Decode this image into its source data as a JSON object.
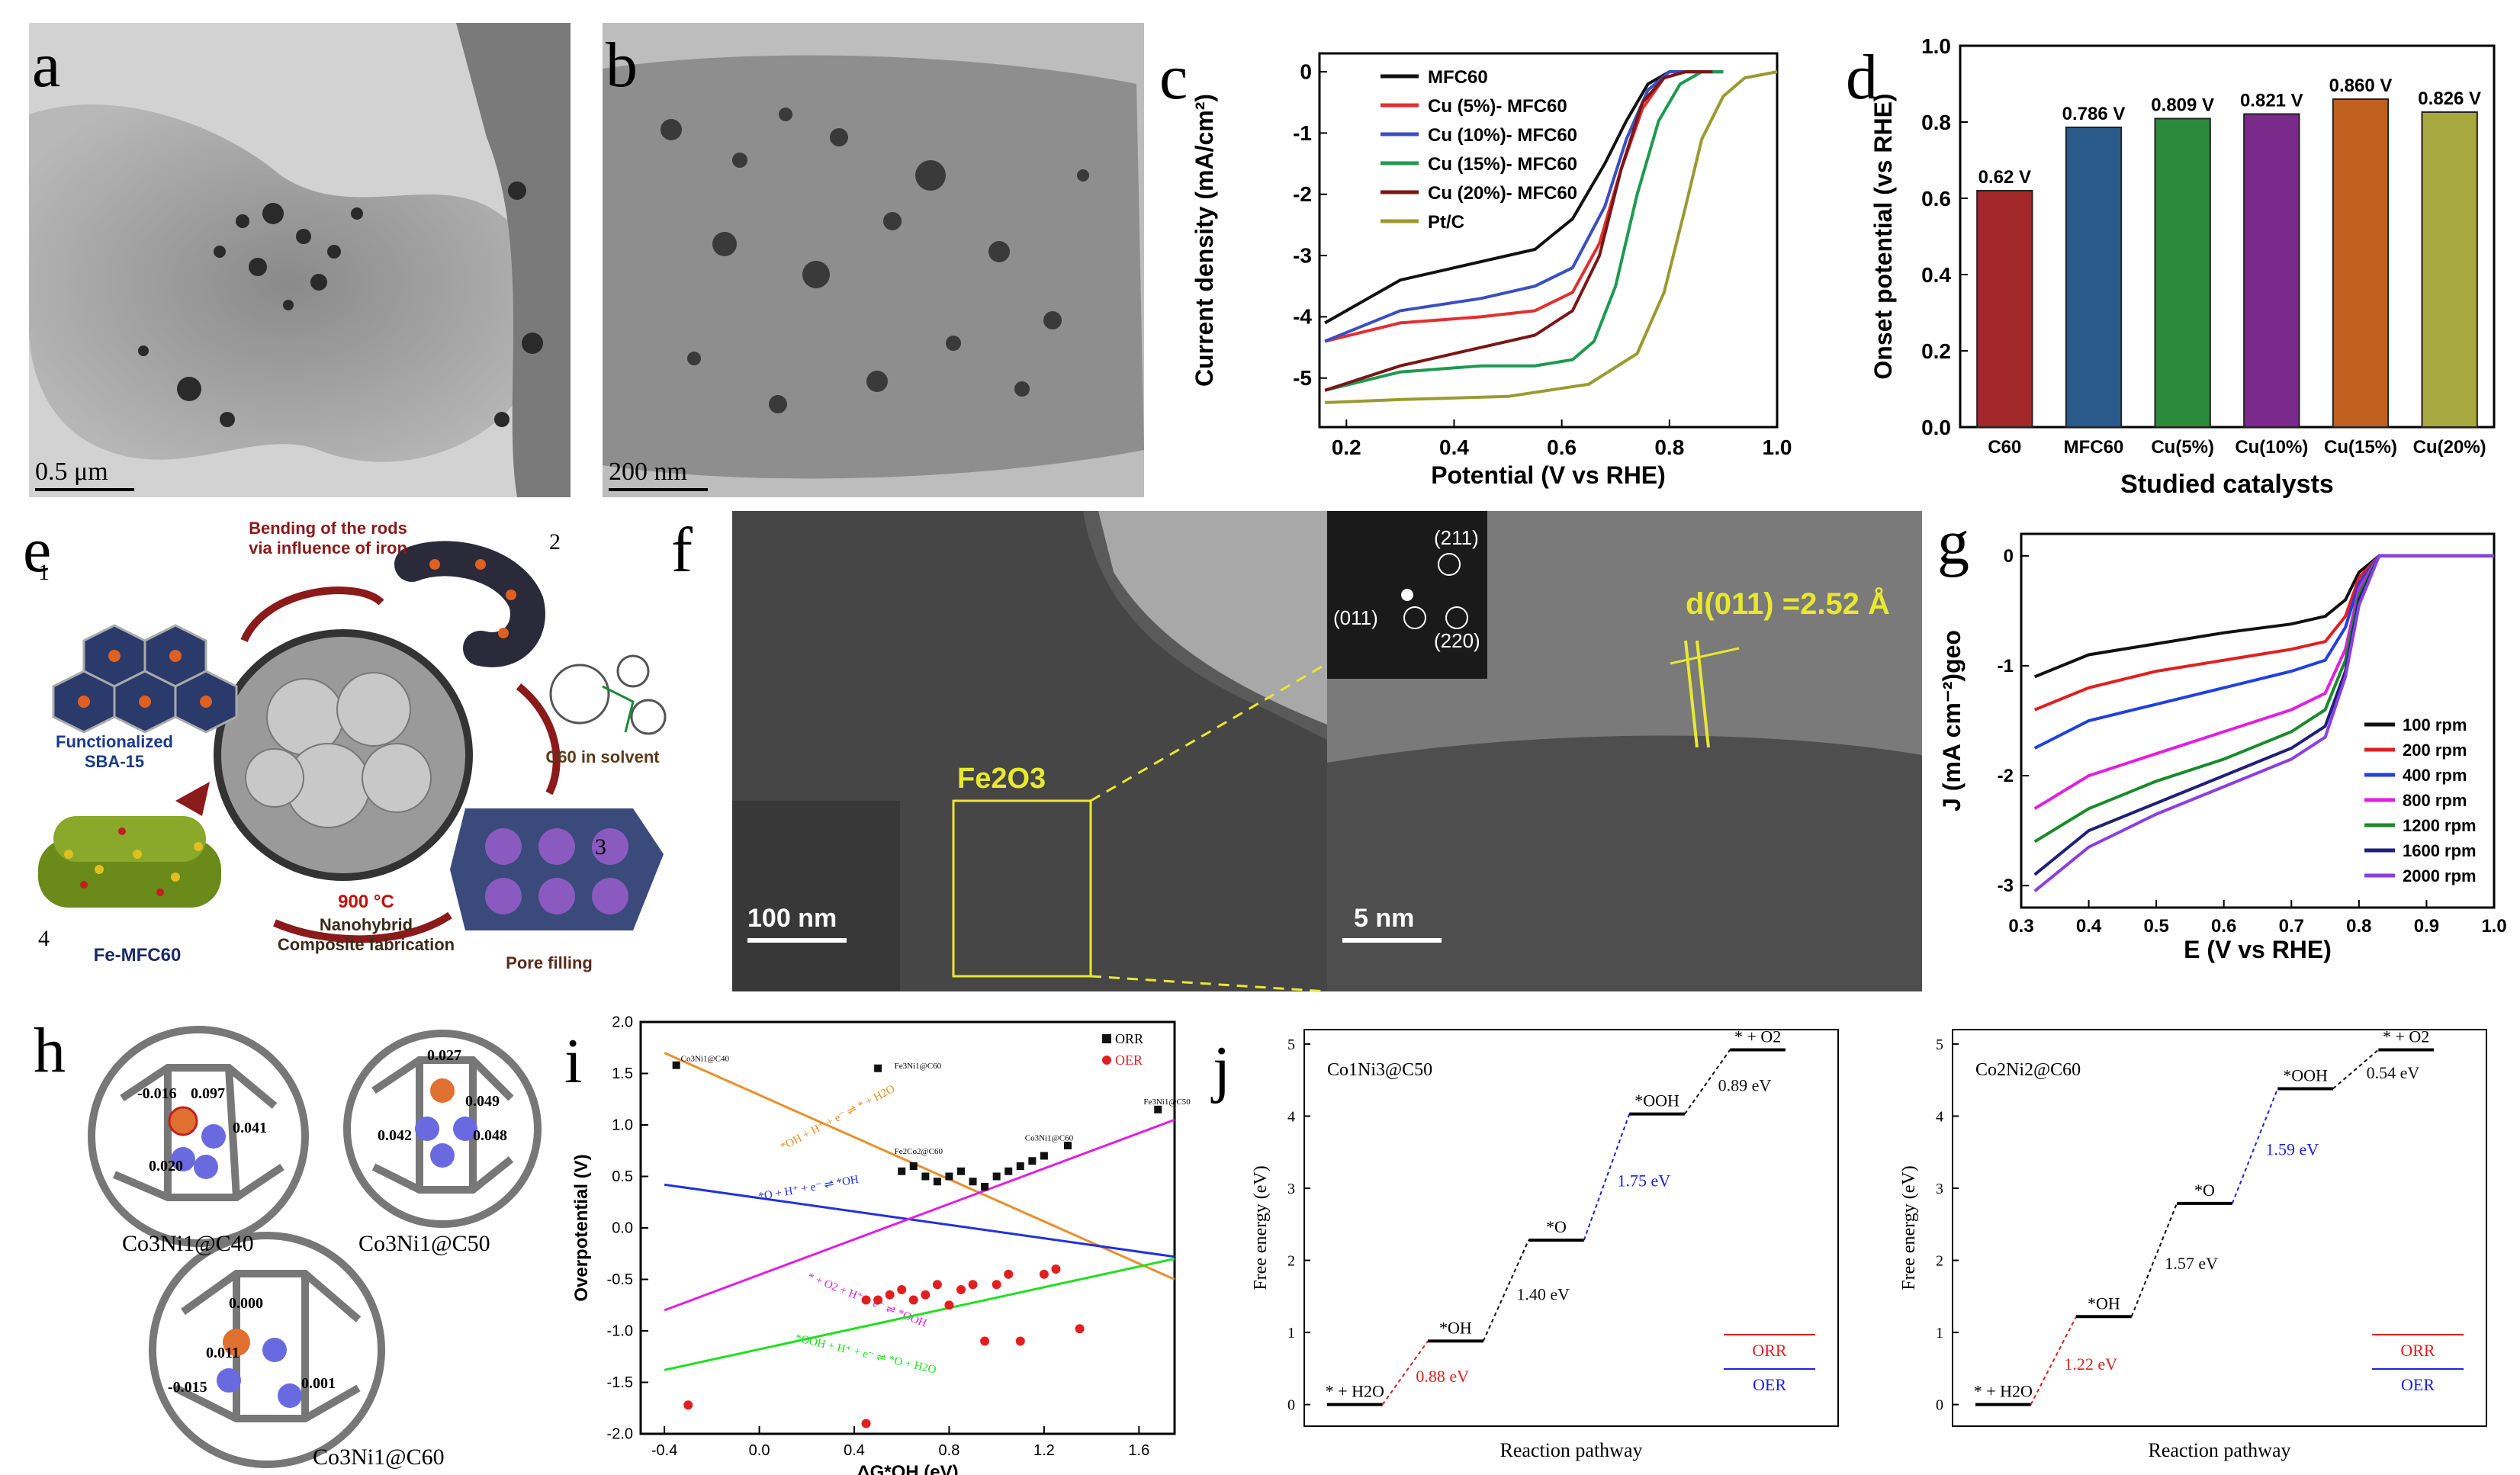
{
  "panel_labels": {
    "a": "a",
    "b": "b",
    "c": "c",
    "d": "d",
    "e": "e",
    "f": "f",
    "g": "g",
    "h": "h",
    "i": "i",
    "j": "j"
  },
  "panel_a": {
    "scale_bar": "0.5 μm"
  },
  "panel_b": {
    "scale_bar": "200 nm"
  },
  "panel_e": {
    "step1": "1",
    "step2": "2",
    "step3": "3",
    "step4": "4",
    "bend_text": "Bending of the rods\nvia influence of iron",
    "sba_label": "Functionalized\nSBA-15",
    "c60_label": "C60 in solvent",
    "temp_label": "900 °C",
    "nano_label": "Nanohybrid\nComposite fabrication",
    "pore_label": "Pore filling",
    "fe_label": "Fe-MFC60"
  },
  "panel_f": {
    "scale_left": "100 nm",
    "scale_right": "5 nm",
    "fe2o3": "Fe2O3",
    "d_spacing": "d(011) =2.52 Å",
    "fft_spots": [
      "(211)",
      "(011)",
      "(220)"
    ]
  },
  "panel_h": {
    "structures": [
      {
        "name": "Co3Ni1@C40",
        "charges": [
          "-0.016",
          "0.097",
          "0.041",
          "0.020"
        ]
      },
      {
        "name": "Co3Ni1@C50",
        "charges": [
          "0.027",
          "0.049",
          "0.042",
          "0.048"
        ]
      },
      {
        "name": "Co3Ni1@C60",
        "charges": [
          "0.000",
          "0.011",
          "-0.015",
          "0.001"
        ]
      }
    ]
  },
  "colors": {
    "black": "#111111",
    "red": "#e03030",
    "blue": "#3a4fc0",
    "green": "#1e9a50",
    "darkred": "#7a1616",
    "olive": "#9a9a30",
    "orange": "#e8902a",
    "magenta": "#d040d0",
    "lime": "#30d030"
  },
  "chart_data": [
    {
      "id": "c",
      "type": "line",
      "xlabel": "Potential (V vs RHE)",
      "ylabel": "Current density (mA/cm²)",
      "xlim": [
        0.15,
        1.0
      ],
      "ylim": [
        -5.8,
        0.3
      ],
      "xticks": [
        "0.2",
        "0.4",
        "0.6",
        "0.8",
        "1.0"
      ],
      "yticks": [
        "0",
        "-1",
        "-2",
        "-3",
        "-4",
        "-5"
      ],
      "series": [
        {
          "name": "MFC60",
          "color": "#111111",
          "x": [
            0.16,
            0.3,
            0.45,
            0.55,
            0.62,
            0.68,
            0.72,
            0.76,
            0.8,
            0.85,
            0.9
          ],
          "y": [
            -4.1,
            -3.4,
            -3.1,
            -2.9,
            -2.4,
            -1.5,
            -0.8,
            -0.2,
            0,
            0,
            0
          ]
        },
        {
          "name": "Cu (5%)- MFC60",
          "color": "#e03030",
          "x": [
            0.16,
            0.3,
            0.45,
            0.55,
            0.62,
            0.67,
            0.71,
            0.75,
            0.79,
            0.83,
            0.9
          ],
          "y": [
            -4.4,
            -4.1,
            -4.0,
            -3.9,
            -3.6,
            -2.8,
            -1.6,
            -0.6,
            -0.1,
            0,
            0
          ]
        },
        {
          "name": "Cu (10%)- MFC60",
          "color": "#3a4fc0",
          "x": [
            0.16,
            0.3,
            0.45,
            0.55,
            0.62,
            0.68,
            0.72,
            0.76,
            0.8,
            0.85,
            0.9
          ],
          "y": [
            -4.4,
            -3.9,
            -3.7,
            -3.5,
            -3.2,
            -2.2,
            -1.1,
            -0.3,
            0,
            0,
            0
          ]
        },
        {
          "name": "Cu (15%)- MFC60",
          "color": "#1e9a50",
          "x": [
            0.16,
            0.3,
            0.45,
            0.55,
            0.62,
            0.66,
            0.7,
            0.74,
            0.78,
            0.82,
            0.86,
            0.9
          ],
          "y": [
            -5.2,
            -4.9,
            -4.8,
            -4.8,
            -4.7,
            -4.4,
            -3.5,
            -2.0,
            -0.8,
            -0.2,
            0,
            0
          ]
        },
        {
          "name": "Cu (20%)- MFC60",
          "color": "#7a1616",
          "x": [
            0.16,
            0.3,
            0.45,
            0.55,
            0.62,
            0.67,
            0.71,
            0.75,
            0.79,
            0.83,
            0.88
          ],
          "y": [
            -5.2,
            -4.8,
            -4.5,
            -4.3,
            -3.9,
            -3.0,
            -1.6,
            -0.5,
            -0.1,
            0,
            0
          ]
        },
        {
          "name": "Pt/C",
          "color": "#9a9a30",
          "x": [
            0.16,
            0.3,
            0.5,
            0.65,
            0.74,
            0.79,
            0.83,
            0.86,
            0.9,
            0.94,
            1.0
          ],
          "y": [
            -5.4,
            -5.35,
            -5.3,
            -5.1,
            -4.6,
            -3.6,
            -2.2,
            -1.1,
            -0.4,
            -0.1,
            0
          ]
        }
      ]
    },
    {
      "id": "d",
      "type": "bar",
      "title": "",
      "xlabel": "Studied catalysts",
      "ylabel": "Onset potential (vs RHE)",
      "ylim": [
        0,
        1.0
      ],
      "yticks": [
        "0.0",
        "0.2",
        "0.4",
        "0.6",
        "0.8",
        "1.0"
      ],
      "categories": [
        "C60",
        "MFC60",
        "Cu(5%)",
        "Cu(10%)",
        "Cu(15%)",
        "Cu(20%)"
      ],
      "values": [
        0.62,
        0.786,
        0.809,
        0.821,
        0.86,
        0.826
      ],
      "data_labels": [
        "0.62 V",
        "0.786 V",
        "0.809 V",
        "0.821 V",
        "0.860 V",
        "0.826 V"
      ],
      "colors": [
        "#a3282a",
        "#2a5a8a",
        "#2c8a3c",
        "#7a2a8a",
        "#c06020",
        "#a8a840"
      ]
    },
    {
      "id": "g",
      "type": "line",
      "xlabel": "E (V vs RHE)",
      "ylabel": "J (mA cm⁻²)geo",
      "xlim": [
        0.3,
        1.0
      ],
      "ylim": [
        -3.2,
        0.2
      ],
      "xticks": [
        "0.3",
        "0.4",
        "0.5",
        "0.6",
        "0.7",
        "0.8",
        "0.9",
        "1.0"
      ],
      "yticks": [
        "0",
        "-1",
        "-2",
        "-3"
      ],
      "series": [
        {
          "name": "100 rpm",
          "color": "#111111",
          "x": [
            0.32,
            0.4,
            0.5,
            0.6,
            0.7,
            0.75,
            0.78,
            0.8,
            0.83,
            0.9,
            1.0
          ],
          "y": [
            -1.1,
            -0.9,
            -0.8,
            -0.7,
            -0.62,
            -0.55,
            -0.4,
            -0.15,
            0,
            0,
            0
          ]
        },
        {
          "name": "200 rpm",
          "color": "#e02020",
          "x": [
            0.32,
            0.4,
            0.5,
            0.6,
            0.7,
            0.75,
            0.78,
            0.8,
            0.83,
            0.9,
            1.0
          ],
          "y": [
            -1.4,
            -1.2,
            -1.05,
            -0.95,
            -0.85,
            -0.78,
            -0.55,
            -0.2,
            0,
            0,
            0
          ]
        },
        {
          "name": "400 rpm",
          "color": "#2040e0",
          "x": [
            0.32,
            0.4,
            0.5,
            0.6,
            0.7,
            0.75,
            0.78,
            0.8,
            0.83,
            0.9,
            1.0
          ],
          "y": [
            -1.75,
            -1.5,
            -1.35,
            -1.2,
            -1.05,
            -0.95,
            -0.65,
            -0.25,
            0,
            0,
            0
          ]
        },
        {
          "name": "800 rpm",
          "color": "#e020e0",
          "x": [
            0.32,
            0.4,
            0.5,
            0.6,
            0.7,
            0.75,
            0.78,
            0.8,
            0.83,
            0.9,
            1.0
          ],
          "y": [
            -2.3,
            -2.0,
            -1.8,
            -1.6,
            -1.4,
            -1.25,
            -0.85,
            -0.3,
            0,
            0,
            0
          ]
        },
        {
          "name": "1200 rpm",
          "color": "#1a8a2a",
          "x": [
            0.32,
            0.4,
            0.5,
            0.6,
            0.7,
            0.75,
            0.78,
            0.8,
            0.83,
            0.9,
            1.0
          ],
          "y": [
            -2.6,
            -2.3,
            -2.05,
            -1.85,
            -1.6,
            -1.4,
            -0.95,
            -0.35,
            0,
            0,
            0
          ]
        },
        {
          "name": "1600 rpm",
          "color": "#20207a",
          "x": [
            0.32,
            0.4,
            0.5,
            0.6,
            0.7,
            0.75,
            0.78,
            0.8,
            0.83,
            0.9,
            1.0
          ],
          "y": [
            -2.9,
            -2.5,
            -2.25,
            -2.0,
            -1.75,
            -1.55,
            -1.05,
            -0.4,
            0,
            0,
            0
          ]
        },
        {
          "name": "2000 rpm",
          "color": "#8a40e0",
          "x": [
            0.32,
            0.4,
            0.5,
            0.6,
            0.7,
            0.75,
            0.78,
            0.8,
            0.83,
            0.9,
            1.0
          ],
          "y": [
            -3.05,
            -2.65,
            -2.35,
            -2.1,
            -1.85,
            -1.65,
            -1.1,
            -0.45,
            0,
            0,
            0
          ]
        }
      ]
    },
    {
      "id": "i",
      "type": "scatter",
      "xlabel": "ΔG*OH (eV)",
      "ylabel": "Overpotential (V)",
      "xlim": [
        -0.5,
        1.75
      ],
      "ylim": [
        -2.0,
        2.0
      ],
      "xticks": [
        "-0.4",
        "0.0",
        "0.4",
        "0.8",
        "1.2",
        "1.6"
      ],
      "yticks": [
        "2.0",
        "1.5",
        "1.0",
        "0.5",
        "0.0",
        "-0.5",
        "-1.0",
        "-1.5",
        "-2.0"
      ],
      "legend": [
        "ORR",
        "OER"
      ],
      "orr_points": {
        "x": [
          -0.35,
          0.5,
          0.6,
          0.65,
          0.7,
          0.75,
          0.8,
          0.85,
          0.9,
          0.95,
          1.0,
          1.05,
          1.1,
          1.15,
          1.2,
          1.3,
          1.68
        ],
        "y": [
          1.58,
          1.55,
          0.55,
          0.6,
          0.5,
          0.45,
          0.5,
          0.55,
          0.45,
          0.4,
          0.5,
          0.55,
          0.6,
          0.65,
          0.7,
          0.8,
          1.15
        ]
      },
      "oer_points": {
        "x": [
          -0.3,
          0.45,
          0.5,
          0.55,
          0.6,
          0.65,
          0.7,
          0.75,
          0.8,
          0.85,
          0.9,
          0.95,
          1.0,
          1.05,
          1.1,
          1.2,
          1.25,
          1.35,
          0.45
        ],
        "y": [
          -1.72,
          -0.7,
          -0.7,
          -0.65,
          -0.6,
          -0.7,
          -0.65,
          -0.55,
          -0.75,
          -0.6,
          -0.55,
          -1.1,
          -0.55,
          -0.45,
          -1.1,
          -0.45,
          -0.4,
          -0.98,
          -1.9
        ]
      },
      "lines": [
        {
          "label": "*OH + H⁺ + e⁻ ⇌ * + H2O",
          "color": "#e8902a",
          "x": [
            -0.4,
            1.75
          ],
          "y": [
            1.7,
            -0.5
          ]
        },
        {
          "label": "*O + H⁺ + e⁻ ⇌ *OH",
          "color": "#2030e0",
          "x": [
            -0.4,
            1.75
          ],
          "y": [
            0.42,
            -0.28
          ]
        },
        {
          "label": "* + O2 + H⁺ + e⁻ ⇌ *OOH",
          "color": "#e020e0",
          "x": [
            -0.4,
            1.75
          ],
          "y": [
            -0.8,
            1.05
          ]
        },
        {
          "label": "*OOH + H⁺ + e⁻ ⇌ *O + H2O",
          "color": "#20e020",
          "x": [
            -0.4,
            1.75
          ],
          "y": [
            -1.38,
            -0.3
          ]
        }
      ],
      "annotations": [
        "Co3Ni1@C40",
        "Fe3Ni1@C60",
        "Fe2Co2@C60",
        "Co3Ni1@C60",
        "Fe3Ni1@C50"
      ]
    },
    {
      "id": "j1",
      "type": "line",
      "title": "Co1Ni3@C50",
      "xlabel": "Reaction pathway",
      "ylabel": "Free energy (eV)",
      "ylim": [
        -0.3,
        5.2
      ],
      "yticks": [
        "0",
        "1",
        "2",
        "3",
        "4",
        "5"
      ],
      "steps": [
        {
          "label": "* + H2O",
          "value": 0
        },
        {
          "label": "*OH",
          "value": 0.88
        },
        {
          "label": "*O",
          "value": 2.28
        },
        {
          "label": "*OOH",
          "value": 4.03
        },
        {
          "label": "* + O2",
          "value": 4.92
        }
      ],
      "step_gaps": [
        "0.88 eV",
        "1.40 eV",
        "1.75 eV",
        "0.89 eV"
      ],
      "legend": [
        "ORR",
        "OER"
      ]
    },
    {
      "id": "j2",
      "type": "line",
      "title": "Co2Ni2@C60",
      "xlabel": "Reaction pathway",
      "ylabel": "Free energy (eV)",
      "ylim": [
        -0.3,
        5.2
      ],
      "yticks": [
        "0",
        "1",
        "2",
        "3",
        "4",
        "5"
      ],
      "steps": [
        {
          "label": "* + H2O",
          "value": 0
        },
        {
          "label": "*OH",
          "value": 1.22
        },
        {
          "label": "*O",
          "value": 2.79
        },
        {
          "label": "*OOH",
          "value": 4.38
        },
        {
          "label": "* + O2",
          "value": 4.92
        }
      ],
      "step_gaps": [
        "1.22 eV",
        "1.57 eV",
        "1.59 eV",
        "0.54 eV"
      ],
      "legend": [
        "ORR",
        "OER"
      ]
    }
  ]
}
